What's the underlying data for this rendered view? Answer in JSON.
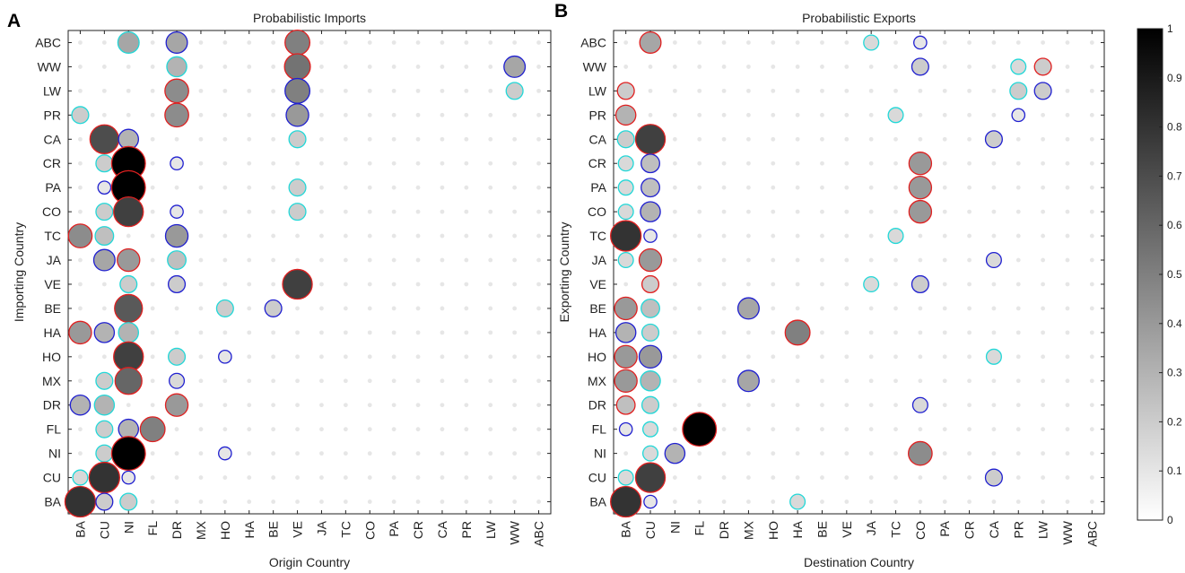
{
  "chart_data": [
    {
      "type": "scatter",
      "panel_label": "A",
      "title": "Probabilistic Imports",
      "xlabel": "Origin Country",
      "ylabel": "Importing Country",
      "x_categories": [
        "BA",
        "CU",
        "NI",
        "FL",
        "DR",
        "MX",
        "HO",
        "HA",
        "BE",
        "VE",
        "JA",
        "TC",
        "CO",
        "PA",
        "CR",
        "CA",
        "PR",
        "LW",
        "WW",
        "ABC"
      ],
      "y_categories_top_to_bottom": [
        "ABC",
        "WW",
        "LW",
        "PR",
        "CA",
        "CR",
        "PA",
        "CO",
        "TC",
        "JA",
        "VE",
        "BE",
        "HA",
        "HO",
        "MX",
        "DR",
        "FL",
        "NI",
        "CU",
        "BA"
      ],
      "baseline_dot_value": 0.05,
      "legend_colors": {
        "red": "#e02020",
        "blue": "#2020d0",
        "cyan": "#22d8d8"
      },
      "points": [
        {
          "y": "ABC",
          "x": "NI",
          "value": 0.35,
          "edge": "cyan"
        },
        {
          "y": "ABC",
          "x": "DR",
          "value": 0.35,
          "edge": "blue"
        },
        {
          "y": "ABC",
          "x": "VE",
          "value": 0.5,
          "edge": "red"
        },
        {
          "y": "WW",
          "x": "DR",
          "value": 0.3,
          "edge": "cyan"
        },
        {
          "y": "WW",
          "x": "VE",
          "value": 0.55,
          "edge": "red"
        },
        {
          "y": "WW",
          "x": "WW",
          "value": 0.35,
          "edge": "blue"
        },
        {
          "y": "LW",
          "x": "DR",
          "value": 0.45,
          "edge": "red"
        },
        {
          "y": "LW",
          "x": "VE",
          "value": 0.5,
          "edge": "blue"
        },
        {
          "y": "LW",
          "x": "WW",
          "value": 0.2,
          "edge": "cyan"
        },
        {
          "y": "PR",
          "x": "BA",
          "value": 0.2,
          "edge": "cyan"
        },
        {
          "y": "PR",
          "x": "DR",
          "value": 0.45,
          "edge": "red"
        },
        {
          "y": "PR",
          "x": "VE",
          "value": 0.4,
          "edge": "blue"
        },
        {
          "y": "CA",
          "x": "CU",
          "value": 0.7,
          "edge": "red"
        },
        {
          "y": "CA",
          "x": "NI",
          "value": 0.3,
          "edge": "blue"
        },
        {
          "y": "CA",
          "x": "VE",
          "value": 0.2,
          "edge": "cyan"
        },
        {
          "y": "CR",
          "x": "CU",
          "value": 0.2,
          "edge": "cyan"
        },
        {
          "y": "CR",
          "x": "NI",
          "value": 1.0,
          "edge": "red"
        },
        {
          "y": "CR",
          "x": "DR",
          "value": 0.1,
          "edge": "blue"
        },
        {
          "y": "PA",
          "x": "CU",
          "value": 0.1,
          "edge": "blue"
        },
        {
          "y": "PA",
          "x": "NI",
          "value": 1.0,
          "edge": "red"
        },
        {
          "y": "PA",
          "x": "VE",
          "value": 0.2,
          "edge": "cyan"
        },
        {
          "y": "CO",
          "x": "CU",
          "value": 0.2,
          "edge": "cyan"
        },
        {
          "y": "CO",
          "x": "NI",
          "value": 0.75,
          "edge": "red"
        },
        {
          "y": "CO",
          "x": "DR",
          "value": 0.1,
          "edge": "blue"
        },
        {
          "y": "CO",
          "x": "VE",
          "value": 0.2,
          "edge": "cyan"
        },
        {
          "y": "TC",
          "x": "BA",
          "value": 0.45,
          "edge": "red"
        },
        {
          "y": "TC",
          "x": "CU",
          "value": 0.25,
          "edge": "cyan"
        },
        {
          "y": "TC",
          "x": "DR",
          "value": 0.4,
          "edge": "blue"
        },
        {
          "y": "JA",
          "x": "CU",
          "value": 0.35,
          "edge": "blue"
        },
        {
          "y": "JA",
          "x": "NI",
          "value": 0.4,
          "edge": "red"
        },
        {
          "y": "JA",
          "x": "DR",
          "value": 0.25,
          "edge": "cyan"
        },
        {
          "y": "VE",
          "x": "NI",
          "value": 0.2,
          "edge": "cyan"
        },
        {
          "y": "VE",
          "x": "DR",
          "value": 0.2,
          "edge": "blue"
        },
        {
          "y": "VE",
          "x": "VE",
          "value": 0.75,
          "edge": "red"
        },
        {
          "y": "BE",
          "x": "NI",
          "value": 0.65,
          "edge": "red"
        },
        {
          "y": "BE",
          "x": "HO",
          "value": 0.2,
          "edge": "cyan"
        },
        {
          "y": "BE",
          "x": "BE",
          "value": 0.2,
          "edge": "blue"
        },
        {
          "y": "HA",
          "x": "BA",
          "value": 0.4,
          "edge": "red"
        },
        {
          "y": "HA",
          "x": "CU",
          "value": 0.3,
          "edge": "blue"
        },
        {
          "y": "HA",
          "x": "NI",
          "value": 0.3,
          "edge": "cyan"
        },
        {
          "y": "HO",
          "x": "NI",
          "value": 0.75,
          "edge": "red"
        },
        {
          "y": "HO",
          "x": "DR",
          "value": 0.2,
          "edge": "cyan"
        },
        {
          "y": "HO",
          "x": "HO",
          "value": 0.1,
          "edge": "blue"
        },
        {
          "y": "MX",
          "x": "CU",
          "value": 0.2,
          "edge": "cyan"
        },
        {
          "y": "MX",
          "x": "NI",
          "value": 0.6,
          "edge": "red"
        },
        {
          "y": "MX",
          "x": "DR",
          "value": 0.15,
          "edge": "blue"
        },
        {
          "y": "DR",
          "x": "BA",
          "value": 0.3,
          "edge": "blue"
        },
        {
          "y": "DR",
          "x": "CU",
          "value": 0.3,
          "edge": "cyan"
        },
        {
          "y": "DR",
          "x": "DR",
          "value": 0.4,
          "edge": "red"
        },
        {
          "y": "FL",
          "x": "CU",
          "value": 0.2,
          "edge": "cyan"
        },
        {
          "y": "FL",
          "x": "NI",
          "value": 0.3,
          "edge": "blue"
        },
        {
          "y": "FL",
          "x": "FL",
          "value": 0.5,
          "edge": "red"
        },
        {
          "y": "NI",
          "x": "CU",
          "value": 0.2,
          "edge": "cyan"
        },
        {
          "y": "NI",
          "x": "NI",
          "value": 1.0,
          "edge": "red"
        },
        {
          "y": "NI",
          "x": "HO",
          "value": 0.1,
          "edge": "blue"
        },
        {
          "y": "CU",
          "x": "BA",
          "value": 0.15,
          "edge": "cyan"
        },
        {
          "y": "CU",
          "x": "CU",
          "value": 0.8,
          "edge": "red"
        },
        {
          "y": "CU",
          "x": "NI",
          "value": 0.1,
          "edge": "blue"
        },
        {
          "y": "BA",
          "x": "BA",
          "value": 0.8,
          "edge": "red"
        },
        {
          "y": "BA",
          "x": "CU",
          "value": 0.2,
          "edge": "blue"
        },
        {
          "y": "BA",
          "x": "NI",
          "value": 0.2,
          "edge": "cyan"
        }
      ]
    },
    {
      "type": "scatter",
      "panel_label": "B",
      "title": "Probabilistic Exports",
      "xlabel": "Destination Country",
      "ylabel": "Exporting Country",
      "x_categories": [
        "BA",
        "CU",
        "NI",
        "FL",
        "DR",
        "MX",
        "HO",
        "HA",
        "BE",
        "VE",
        "JA",
        "TC",
        "CO",
        "PA",
        "CR",
        "CA",
        "PR",
        "LW",
        "WW",
        "ABC"
      ],
      "y_categories_top_to_bottom": [
        "ABC",
        "WW",
        "LW",
        "PR",
        "CA",
        "CR",
        "PA",
        "CO",
        "TC",
        "JA",
        "VE",
        "BE",
        "HA",
        "HO",
        "MX",
        "DR",
        "FL",
        "NI",
        "CU",
        "BA"
      ],
      "baseline_dot_value": 0.05,
      "points": [
        {
          "y": "ABC",
          "x": "CU",
          "value": 0.35,
          "edge": "red"
        },
        {
          "y": "ABC",
          "x": "JA",
          "value": 0.15,
          "edge": "cyan"
        },
        {
          "y": "ABC",
          "x": "CO",
          "value": 0.1,
          "edge": "blue"
        },
        {
          "y": "WW",
          "x": "CO",
          "value": 0.2,
          "edge": "blue"
        },
        {
          "y": "WW",
          "x": "PR",
          "value": 0.15,
          "edge": "cyan"
        },
        {
          "y": "WW",
          "x": "LW",
          "value": 0.2,
          "edge": "red"
        },
        {
          "y": "LW",
          "x": "BA",
          "value": 0.2,
          "edge": "red"
        },
        {
          "y": "LW",
          "x": "PR",
          "value": 0.2,
          "edge": "cyan"
        },
        {
          "y": "LW",
          "x": "LW",
          "value": 0.2,
          "edge": "blue"
        },
        {
          "y": "PR",
          "x": "BA",
          "value": 0.3,
          "edge": "red"
        },
        {
          "y": "PR",
          "x": "TC",
          "value": 0.15,
          "edge": "cyan"
        },
        {
          "y": "PR",
          "x": "PR",
          "value": 0.1,
          "edge": "blue"
        },
        {
          "y": "CA",
          "x": "BA",
          "value": 0.2,
          "edge": "cyan"
        },
        {
          "y": "CA",
          "x": "CU",
          "value": 0.75,
          "edge": "red"
        },
        {
          "y": "CA",
          "x": "CA",
          "value": 0.2,
          "edge": "blue"
        },
        {
          "y": "CR",
          "x": "BA",
          "value": 0.15,
          "edge": "cyan"
        },
        {
          "y": "CR",
          "x": "CU",
          "value": 0.25,
          "edge": "blue"
        },
        {
          "y": "CR",
          "x": "CO",
          "value": 0.4,
          "edge": "red"
        },
        {
          "y": "PA",
          "x": "BA",
          "value": 0.15,
          "edge": "cyan"
        },
        {
          "y": "PA",
          "x": "CU",
          "value": 0.25,
          "edge": "blue"
        },
        {
          "y": "PA",
          "x": "CO",
          "value": 0.4,
          "edge": "red"
        },
        {
          "y": "CO",
          "x": "BA",
          "value": 0.15,
          "edge": "cyan"
        },
        {
          "y": "CO",
          "x": "CU",
          "value": 0.3,
          "edge": "blue"
        },
        {
          "y": "CO",
          "x": "CO",
          "value": 0.4,
          "edge": "red"
        },
        {
          "y": "TC",
          "x": "BA",
          "value": 0.8,
          "edge": "red"
        },
        {
          "y": "TC",
          "x": "CU",
          "value": 0.1,
          "edge": "blue"
        },
        {
          "y": "TC",
          "x": "TC",
          "value": 0.15,
          "edge": "cyan"
        },
        {
          "y": "JA",
          "x": "BA",
          "value": 0.15,
          "edge": "cyan"
        },
        {
          "y": "JA",
          "x": "CU",
          "value": 0.4,
          "edge": "red"
        },
        {
          "y": "JA",
          "x": "CA",
          "value": 0.15,
          "edge": "blue"
        },
        {
          "y": "VE",
          "x": "CU",
          "value": 0.2,
          "edge": "red"
        },
        {
          "y": "VE",
          "x": "JA",
          "value": 0.15,
          "edge": "cyan"
        },
        {
          "y": "VE",
          "x": "CO",
          "value": 0.2,
          "edge": "blue"
        },
        {
          "y": "BE",
          "x": "BA",
          "value": 0.4,
          "edge": "red"
        },
        {
          "y": "BE",
          "x": "CU",
          "value": 0.25,
          "edge": "cyan"
        },
        {
          "y": "BE",
          "x": "MX",
          "value": 0.35,
          "edge": "blue"
        },
        {
          "y": "HA",
          "x": "BA",
          "value": 0.3,
          "edge": "blue"
        },
        {
          "y": "HA",
          "x": "CU",
          "value": 0.2,
          "edge": "cyan"
        },
        {
          "y": "HA",
          "x": "HA",
          "value": 0.5,
          "edge": "red"
        },
        {
          "y": "HO",
          "x": "BA",
          "value": 0.4,
          "edge": "red"
        },
        {
          "y": "HO",
          "x": "CU",
          "value": 0.4,
          "edge": "blue"
        },
        {
          "y": "HO",
          "x": "CA",
          "value": 0.15,
          "edge": "cyan"
        },
        {
          "y": "MX",
          "x": "BA",
          "value": 0.4,
          "edge": "red"
        },
        {
          "y": "MX",
          "x": "CU",
          "value": 0.3,
          "edge": "cyan"
        },
        {
          "y": "MX",
          "x": "MX",
          "value": 0.35,
          "edge": "blue"
        },
        {
          "y": "DR",
          "x": "BA",
          "value": 0.25,
          "edge": "red"
        },
        {
          "y": "DR",
          "x": "CU",
          "value": 0.2,
          "edge": "cyan"
        },
        {
          "y": "DR",
          "x": "CO",
          "value": 0.15,
          "edge": "blue"
        },
        {
          "y": "FL",
          "x": "BA",
          "value": 0.1,
          "edge": "blue"
        },
        {
          "y": "FL",
          "x": "CU",
          "value": 0.15,
          "edge": "cyan"
        },
        {
          "y": "FL",
          "x": "FL",
          "value": 1.0,
          "edge": "red"
        },
        {
          "y": "NI",
          "x": "CU",
          "value": 0.15,
          "edge": "cyan"
        },
        {
          "y": "NI",
          "x": "NI",
          "value": 0.3,
          "edge": "blue"
        },
        {
          "y": "NI",
          "x": "CO",
          "value": 0.45,
          "edge": "red"
        },
        {
          "y": "CU",
          "x": "BA",
          "value": 0.15,
          "edge": "cyan"
        },
        {
          "y": "CU",
          "x": "CU",
          "value": 0.75,
          "edge": "red"
        },
        {
          "y": "CU",
          "x": "CA",
          "value": 0.2,
          "edge": "blue"
        },
        {
          "y": "BA",
          "x": "BA",
          "value": 0.8,
          "edge": "red"
        },
        {
          "y": "BA",
          "x": "CU",
          "value": 0.1,
          "edge": "blue"
        },
        {
          "y": "BA",
          "x": "HA",
          "value": 0.15,
          "edge": "cyan"
        }
      ]
    }
  ],
  "colorbar": {
    "ticks": [
      "0",
      "0.1",
      "0.2",
      "0.3",
      "0.4",
      "0.5",
      "0.6",
      "0.7",
      "0.8",
      "0.9",
      "1"
    ],
    "range": [
      0,
      1
    ]
  }
}
